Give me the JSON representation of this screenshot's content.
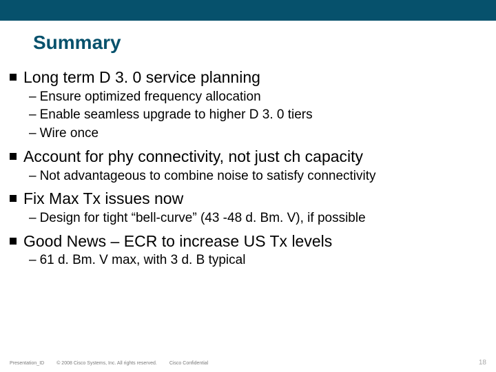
{
  "colors": {
    "brand": "#06516c",
    "text": "#000000",
    "footer_text": "#7a7a7a",
    "pagenum": "#a8a8a8",
    "background": "#ffffff"
  },
  "title": "Summary",
  "bullets": [
    {
      "text": "Long term D 3. 0 service planning",
      "sub": [
        "Ensure optimized frequency allocation",
        "Enable seamless upgrade to higher D 3. 0 tiers",
        "Wire once"
      ]
    },
    {
      "text": "Account for phy connectivity, not just ch capacity",
      "sub": [
        "Not advantageous to combine noise to satisfy connectivity"
      ]
    },
    {
      "text": "Fix Max Tx issues now",
      "sub": [
        "Design for tight “bell-curve” (43 -48 d. Bm. V), if possible"
      ]
    },
    {
      "text": "Good News – ECR to increase US Tx levels",
      "sub": [
        "61 d. Bm. V max, with 3 d. B typical"
      ]
    }
  ],
  "footer": {
    "presentation_id": "Presentation_ID",
    "copyright": "© 2008 Cisco Systems, Inc. All rights reserved.",
    "confidential": "Cisco Confidential",
    "page_number": "18"
  }
}
